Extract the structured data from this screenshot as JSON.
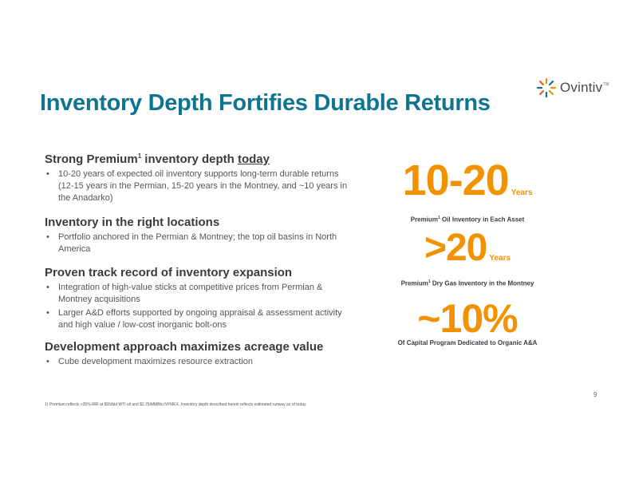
{
  "brand": {
    "name": "Ovintiv",
    "tm": "TM",
    "accent": "#f29200",
    "title_color": "#0e7490"
  },
  "title": "Inventory Depth Fortifies Durable Returns",
  "sections": [
    {
      "head_pre": "Strong Premium",
      "head_sup": "1",
      "head_mid": " inventory depth ",
      "head_underline": "today",
      "bullets": [
        "10-20 years of expected oil inventory supports long-term durable returns (12-15 years in the Permian, 15-20 years in the Montney, and ~10 years in the Anadarko)"
      ]
    },
    {
      "head": "Inventory in the right locations",
      "bullets": [
        "Portfolio anchored in the Permian & Montney; the top oil basins in North America"
      ]
    },
    {
      "head": "Proven track record of inventory expansion",
      "bullets": [
        "Integration of high-value sticks at competitive prices from Permian & Montney acquisitions",
        "Larger A&D efforts supported by ongoing appraisal & assessment activity and high value / low-cost inorganic bolt-ons"
      ]
    },
    {
      "head": "Development approach maximizes acreage value",
      "bullets": [
        "Cube development maximizes resource extraction"
      ]
    }
  ],
  "stats": [
    {
      "value": "10-20",
      "unit": "Years",
      "cap_pre": "Premium",
      "cap_sup": "1",
      "cap_post": " Oil Inventory in Each Asset"
    },
    {
      "value": ">20",
      "unit": "Years",
      "cap_pre": "Premium",
      "cap_sup": "1",
      "cap_post": " Dry Gas Inventory in the Montney"
    },
    {
      "value": "~10%",
      "cap": "Of Capital Program Dedicated to Organic A&A"
    }
  ],
  "footnote": "1) Premium reflects >35% IRR at $55/bbl WTI oil and $2.75/MMBtu NYMEX. Inventory depth described herein reflects estimated runway as of today.",
  "page_number": "9"
}
